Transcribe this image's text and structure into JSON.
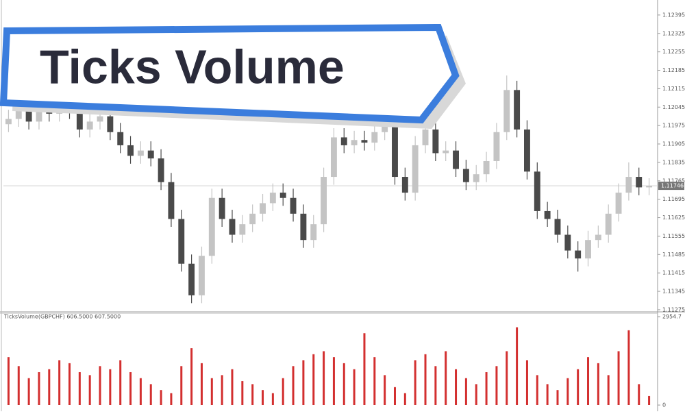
{
  "banner": {
    "title": "Ticks Volume"
  },
  "chart_data": [
    {
      "type": "candlestick",
      "open": [
        1.1198,
        1.12,
        1.1205,
        1.1199,
        1.1206,
        1.1202,
        1.1208,
        1.1203,
        1.1196,
        1.1199,
        1.1201,
        1.1195,
        1.119,
        1.1186,
        1.1188,
        1.1185,
        1.1176,
        1.1162,
        1.1145,
        1.1133,
        1.1148,
        1.117,
        1.1162,
        1.1156,
        1.116,
        1.1164,
        1.1168,
        1.1172,
        1.117,
        1.1164,
        1.1154,
        1.116,
        1.1178,
        1.1193,
        1.119,
        1.1192,
        1.1191,
        1.1195,
        1.1198,
        1.1178,
        1.1172,
        1.119,
        1.1196,
        1.1187,
        1.1188,
        1.1181,
        1.1176,
        1.1179,
        1.1184,
        1.1195,
        1.1211,
        1.1196,
        1.118,
        1.1165,
        1.1162,
        1.1156,
        1.115,
        1.1147,
        1.1154,
        1.1156,
        1.1164,
        1.1172,
        1.1178,
        1.1174
      ],
      "high": [
        1.12035,
        1.12085,
        1.12085,
        1.12095,
        1.12095,
        1.12115,
        1.12115,
        1.12065,
        1.12025,
        1.12045,
        1.12045,
        1.11985,
        1.11935,
        1.11915,
        1.11915,
        1.11885,
        1.11795,
        1.11655,
        1.11485,
        1.11515,
        1.11735,
        1.11735,
        1.11655,
        1.11635,
        1.11675,
        1.11715,
        1.11755,
        1.11755,
        1.11735,
        1.11675,
        1.11635,
        1.11815,
        1.11965,
        1.11965,
        1.11955,
        1.11955,
        1.11985,
        1.12015,
        1.12015,
        1.11815,
        1.11935,
        1.11995,
        1.11995,
        1.11915,
        1.11915,
        1.11845,
        1.11825,
        1.11875,
        1.11985,
        1.12165,
        1.12145,
        1.11995,
        1.11835,
        1.11685,
        1.11655,
        1.11595,
        1.11535,
        1.11575,
        1.11595,
        1.11675,
        1.11755,
        1.11835,
        1.11815,
        1.11775
      ],
      "low": [
        1.1195,
        1.1197,
        1.1196,
        1.1196,
        1.1199,
        1.1199,
        1.12,
        1.1193,
        1.1193,
        1.1196,
        1.1192,
        1.1187,
        1.1183,
        1.1183,
        1.1182,
        1.1173,
        1.1159,
        1.1142,
        1.113,
        1.113,
        1.1145,
        1.1159,
        1.1153,
        1.1153,
        1.1157,
        1.1161,
        1.1165,
        1.1167,
        1.1161,
        1.1151,
        1.1151,
        1.1157,
        1.1175,
        1.1187,
        1.1187,
        1.1188,
        1.1188,
        1.1192,
        1.1175,
        1.1169,
        1.1169,
        1.1187,
        1.1184,
        1.1184,
        1.1178,
        1.1173,
        1.1173,
        1.1176,
        1.1181,
        1.1192,
        1.1193,
        1.1177,
        1.1162,
        1.1159,
        1.1153,
        1.1147,
        1.1142,
        1.1144,
        1.1151,
        1.1153,
        1.1161,
        1.1169,
        1.1171,
        1.1171
      ],
      "close": [
        1.12,
        1.1205,
        1.1199,
        1.1206,
        1.1202,
        1.1208,
        1.1203,
        1.1196,
        1.1199,
        1.1201,
        1.1195,
        1.119,
        1.1186,
        1.1188,
        1.1185,
        1.1176,
        1.1162,
        1.1145,
        1.1133,
        1.1148,
        1.117,
        1.1162,
        1.1156,
        1.116,
        1.1164,
        1.1168,
        1.1172,
        1.117,
        1.1164,
        1.1154,
        1.116,
        1.1178,
        1.1193,
        1.119,
        1.1192,
        1.1191,
        1.1195,
        1.1198,
        1.1178,
        1.1172,
        1.119,
        1.1196,
        1.1187,
        1.1188,
        1.1181,
        1.1176,
        1.1179,
        1.1184,
        1.1195,
        1.1211,
        1.1196,
        1.118,
        1.1165,
        1.1162,
        1.1156,
        1.115,
        1.1147,
        1.1154,
        1.1156,
        1.1164,
        1.1172,
        1.1178,
        1.1174,
        1.11746
      ],
      "up_color": "#c4c4c4",
      "down_color": "#4a4a4a",
      "current_price": 1.11746,
      "ylim": [
        1.11267,
        1.12452
      ],
      "yticks": [
        1.12395,
        1.12325,
        1.12255,
        1.12185,
        1.12115,
        1.12045,
        1.11975,
        1.11905,
        1.11835,
        1.11765,
        1.11695,
        1.11625,
        1.11555,
        1.11485,
        1.11415,
        1.11345,
        1.11275
      ]
    },
    {
      "type": "bar",
      "title": "TicksVolume(GBPCHF) 606.5000 607.5000",
      "color": "#d32f2f",
      "values": [
        1600,
        1300,
        900,
        1100,
        1200,
        1500,
        1400,
        1100,
        1000,
        1300,
        1200,
        1500,
        1100,
        900,
        700,
        500,
        400,
        1300,
        1900,
        1400,
        900,
        1000,
        1200,
        800,
        700,
        500,
        400,
        900,
        1300,
        1500,
        1700,
        1800,
        1600,
        1400,
        1200,
        2400,
        1600,
        1000,
        600,
        400,
        1500,
        1700,
        1300,
        1800,
        1200,
        900,
        700,
        1100,
        1300,
        1800,
        2600,
        1500,
        1000,
        700,
        500,
        900,
        1200,
        1600,
        1400,
        1000,
        1800,
        2500,
        700,
        300
      ],
      "ylim": [
        0,
        2954.7
      ],
      "yticks": [
        2954.7,
        0
      ]
    }
  ]
}
